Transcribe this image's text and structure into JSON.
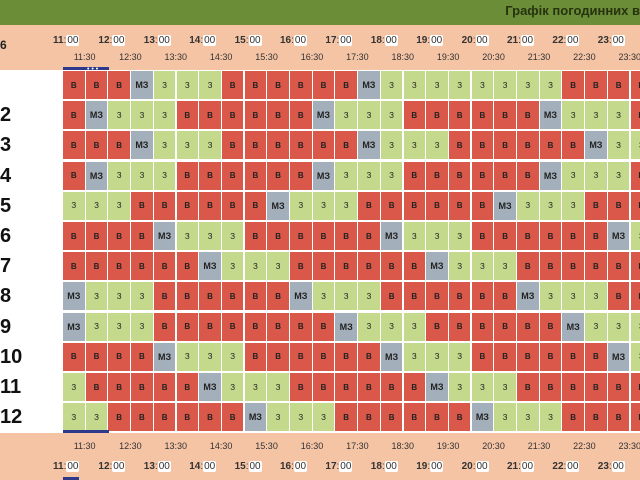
{
  "header": {
    "title": "Графік погодинних в"
  },
  "corner_label": "6",
  "hours": [
    {
      "h": "11",
      "m": "00"
    },
    {
      "h": "12",
      "m": "00"
    },
    {
      "h": "13",
      "m": "00"
    },
    {
      "h": "14",
      "m": "00"
    },
    {
      "h": "15",
      "m": "00"
    },
    {
      "h": "16",
      "m": "00"
    },
    {
      "h": "17",
      "m": "00"
    },
    {
      "h": "18",
      "m": "00"
    },
    {
      "h": "19",
      "m": "00"
    },
    {
      "h": "20",
      "m": "00"
    },
    {
      "h": "21",
      "m": "00"
    },
    {
      "h": "22",
      "m": "00"
    },
    {
      "h": "23",
      "m": "00"
    }
  ],
  "half_hours": [
    "11:30",
    "12:30",
    "13:30",
    "14:30",
    "15:30",
    "16:30",
    "17:30",
    "18:30",
    "19:30",
    "20:30",
    "21:30",
    "22:30",
    "23:30"
  ],
  "rows": [
    {
      "label": "",
      "cells": [
        "В",
        "В",
        "В",
        "МЗ",
        "З",
        "З",
        "З",
        "В",
        "В",
        "В",
        "В",
        "В",
        "В",
        "МЗ",
        "З",
        "З",
        "З",
        "З",
        "З",
        "З",
        "З",
        "З",
        "В",
        "В",
        "В",
        "В",
        "В"
      ]
    },
    {
      "label": "2",
      "cells": [
        "В",
        "МЗ",
        "З",
        "З",
        "З",
        "В",
        "В",
        "В",
        "В",
        "В",
        "В",
        "МЗ",
        "З",
        "З",
        "З",
        "В",
        "В",
        "В",
        "В",
        "В",
        "В",
        "МЗ",
        "З",
        "З",
        "З",
        "В",
        "В"
      ]
    },
    {
      "label": "3",
      "cells": [
        "В",
        "В",
        "В",
        "МЗ",
        "З",
        "З",
        "З",
        "В",
        "В",
        "В",
        "В",
        "В",
        "В",
        "МЗ",
        "З",
        "З",
        "З",
        "В",
        "В",
        "В",
        "В",
        "В",
        "В",
        "МЗ",
        "З",
        "З",
        "З"
      ]
    },
    {
      "label": "4",
      "cells": [
        "В",
        "МЗ",
        "З",
        "З",
        "З",
        "В",
        "В",
        "В",
        "В",
        "В",
        "В",
        "МЗ",
        "З",
        "З",
        "З",
        "В",
        "В",
        "В",
        "В",
        "В",
        "В",
        "МЗ",
        "З",
        "З",
        "З",
        "В",
        "В"
      ]
    },
    {
      "label": "5",
      "cells": [
        "З",
        "З",
        "З",
        "В",
        "В",
        "В",
        "В",
        "В",
        "В",
        "МЗ",
        "З",
        "З",
        "З",
        "В",
        "В",
        "В",
        "В",
        "В",
        "В",
        "МЗ",
        "З",
        "З",
        "З",
        "В",
        "В",
        "В",
        "В"
      ]
    },
    {
      "label": "6",
      "cells": [
        "В",
        "В",
        "В",
        "В",
        "МЗ",
        "З",
        "З",
        "З",
        "В",
        "В",
        "В",
        "В",
        "В",
        "В",
        "МЗ",
        "З",
        "З",
        "З",
        "В",
        "В",
        "В",
        "В",
        "В",
        "В",
        "МЗ",
        "З",
        "З"
      ]
    },
    {
      "label": "7",
      "cells": [
        "В",
        "В",
        "В",
        "В",
        "В",
        "В",
        "МЗ",
        "З",
        "З",
        "З",
        "В",
        "В",
        "В",
        "В",
        "В",
        "В",
        "МЗ",
        "З",
        "З",
        "З",
        "В",
        "В",
        "В",
        "В",
        "В",
        "В",
        "В"
      ]
    },
    {
      "label": "8",
      "cells": [
        "МЗ",
        "З",
        "З",
        "З",
        "В",
        "В",
        "В",
        "В",
        "В",
        "В",
        "МЗ",
        "З",
        "З",
        "З",
        "В",
        "В",
        "В",
        "В",
        "В",
        "В",
        "МЗ",
        "З",
        "З",
        "З",
        "В",
        "В",
        "В"
      ]
    },
    {
      "label": "9",
      "cells": [
        "МЗ",
        "З",
        "З",
        "З",
        "В",
        "В",
        "В",
        "В",
        "В",
        "В",
        "В",
        "В",
        "МЗ",
        "З",
        "З",
        "З",
        "В",
        "В",
        "В",
        "В",
        "В",
        "В",
        "МЗ",
        "З",
        "З",
        "З",
        "В"
      ]
    },
    {
      "label": "10",
      "cells": [
        "В",
        "В",
        "В",
        "В",
        "МЗ",
        "З",
        "З",
        "З",
        "В",
        "В",
        "В",
        "В",
        "В",
        "В",
        "МЗ",
        "З",
        "З",
        "З",
        "В",
        "В",
        "В",
        "В",
        "В",
        "В",
        "МЗ",
        "З",
        "З"
      ]
    },
    {
      "label": "11",
      "cells": [
        "З",
        "В",
        "В",
        "В",
        "В",
        "В",
        "МЗ",
        "З",
        "З",
        "З",
        "В",
        "В",
        "В",
        "В",
        "В",
        "В",
        "МЗ",
        "З",
        "З",
        "З",
        "В",
        "В",
        "В",
        "В",
        "В",
        "В",
        "МЗ"
      ]
    },
    {
      "label": "12",
      "cells": [
        "З",
        "З",
        "В",
        "В",
        "В",
        "В",
        "В",
        "В",
        "МЗ",
        "З",
        "З",
        "З",
        "В",
        "В",
        "В",
        "В",
        "В",
        "В",
        "МЗ",
        "З",
        "З",
        "З",
        "В",
        "В",
        "В",
        "В",
        "В"
      ]
    }
  ]
}
